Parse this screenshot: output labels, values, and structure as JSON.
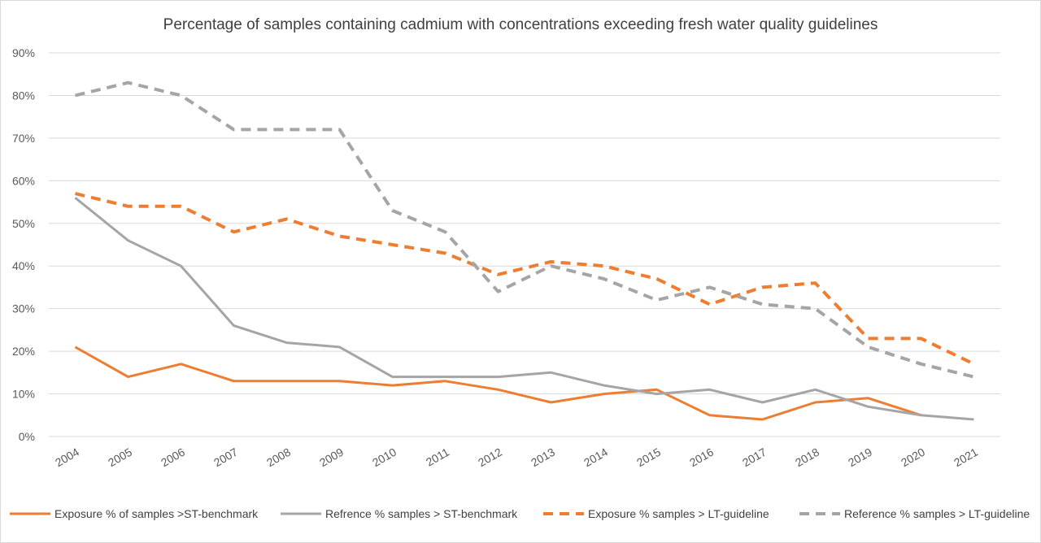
{
  "chart_data": {
    "type": "line",
    "title": "Percentage of samples containing cadmium with concentrations exceeding fresh water quality guidelines",
    "xlabel": "",
    "ylabel": "",
    "ylim": [
      0,
      90
    ],
    "yticks": [
      "0%",
      "10%",
      "20%",
      "30%",
      "40%",
      "50%",
      "60%",
      "70%",
      "80%",
      "90%"
    ],
    "categories": [
      "2004",
      "2005",
      "2006",
      "2007",
      "2008",
      "2009",
      "2010",
      "2011",
      "2012",
      "2013",
      "2014",
      "2015",
      "2016",
      "2017",
      "2018",
      "2019",
      "2020",
      "2021"
    ],
    "grid": true,
    "legend_position": "bottom",
    "series": [
      {
        "name": "Exposure % of samples >ST-benchmark",
        "color": "#ED7D31",
        "style": "solid",
        "values": [
          21,
          14,
          17,
          13,
          13,
          13,
          12,
          13,
          11,
          8,
          10,
          11,
          5,
          4,
          8,
          9,
          5,
          null
        ]
      },
      {
        "name": "Refrence % samples > ST-benchmark",
        "color": "#A5A5A5",
        "style": "solid",
        "values": [
          56,
          46,
          40,
          26,
          22,
          21,
          14,
          14,
          14,
          15,
          12,
          10,
          11,
          8,
          11,
          7,
          5,
          4
        ]
      },
      {
        "name": "Exposure % samples > LT-guideline",
        "color": "#ED7D31",
        "style": "dashed",
        "values": [
          57,
          54,
          54,
          48,
          51,
          47,
          45,
          43,
          38,
          41,
          40,
          37,
          31,
          35,
          36,
          23,
          23,
          17
        ]
      },
      {
        "name": "Reference % samples > LT-guideline",
        "color": "#A5A5A5",
        "style": "dashed",
        "values": [
          80,
          83,
          80,
          72,
          72,
          72,
          53,
          48,
          34,
          40,
          37,
          32,
          35,
          31,
          30,
          21,
          17,
          14
        ]
      }
    ]
  }
}
